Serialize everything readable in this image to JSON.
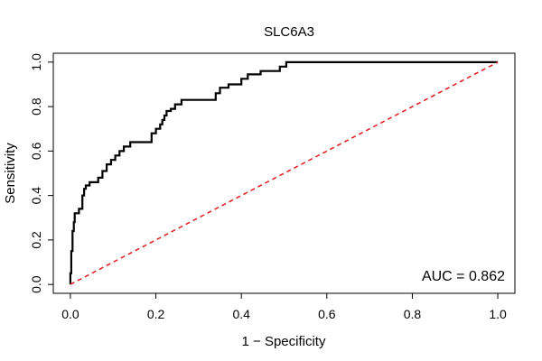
{
  "chart_data": {
    "type": "line",
    "title": "SLC6A3",
    "xlabel": "1 − Specificity",
    "ylabel": "Sensitivity",
    "xlim": [
      -0.04,
      1.04
    ],
    "ylim": [
      -0.04,
      1.04
    ],
    "xticks": [
      0.0,
      0.2,
      0.4,
      0.6,
      0.8,
      1.0
    ],
    "xtick_labels": [
      "0.0",
      "0.2",
      "0.4",
      "0.6",
      "0.8",
      "1.0"
    ],
    "yticks": [
      0.0,
      0.2,
      0.4,
      0.6,
      0.8,
      1.0
    ],
    "ytick_labels": [
      "0.0",
      "0.2",
      "0.4",
      "0.6",
      "0.8",
      "1.0"
    ],
    "grid": false,
    "annotation": "AUC = 0.862",
    "series": [
      {
        "color": "#000000",
        "style": "solid",
        "x": [
          0.0,
          0.0,
          0.002,
          0.002,
          0.005,
          0.005,
          0.008,
          0.008,
          0.01,
          0.01,
          0.012,
          0.012,
          0.02,
          0.02,
          0.028,
          0.028,
          0.032,
          0.032,
          0.036,
          0.036,
          0.045,
          0.045,
          0.065,
          0.065,
          0.075,
          0.075,
          0.085,
          0.085,
          0.095,
          0.095,
          0.105,
          0.105,
          0.115,
          0.115,
          0.125,
          0.125,
          0.14,
          0.14,
          0.16,
          0.16,
          0.19,
          0.19,
          0.2,
          0.2,
          0.21,
          0.21,
          0.215,
          0.215,
          0.22,
          0.22,
          0.225,
          0.225,
          0.235,
          0.235,
          0.245,
          0.245,
          0.26,
          0.26,
          0.285,
          0.285,
          0.34,
          0.34,
          0.35,
          0.35,
          0.37,
          0.37,
          0.4,
          0.4,
          0.415,
          0.415,
          0.445,
          0.445,
          0.49,
          0.49,
          0.505,
          0.505,
          0.515,
          0.515,
          1.0
        ],
        "y": [
          0.0,
          0.05,
          0.05,
          0.15,
          0.15,
          0.24,
          0.24,
          0.28,
          0.28,
          0.32,
          0.32,
          0.32,
          0.32,
          0.34,
          0.34,
          0.4,
          0.4,
          0.43,
          0.43,
          0.445,
          0.445,
          0.46,
          0.46,
          0.48,
          0.48,
          0.51,
          0.51,
          0.54,
          0.54,
          0.56,
          0.56,
          0.58,
          0.58,
          0.6,
          0.6,
          0.62,
          0.62,
          0.64,
          0.64,
          0.64,
          0.64,
          0.68,
          0.68,
          0.7,
          0.7,
          0.72,
          0.72,
          0.74,
          0.74,
          0.76,
          0.76,
          0.78,
          0.78,
          0.79,
          0.79,
          0.81,
          0.81,
          0.83,
          0.83,
          0.83,
          0.83,
          0.86,
          0.86,
          0.885,
          0.885,
          0.9,
          0.9,
          0.925,
          0.925,
          0.945,
          0.945,
          0.96,
          0.96,
          0.98,
          0.98,
          1.0,
          1.0,
          1.0,
          1.0
        ]
      },
      {
        "color": "#e31a1c",
        "style": "dashed",
        "x": [
          0.0,
          1.0
        ],
        "y": [
          0.0,
          1.0
        ]
      }
    ]
  }
}
